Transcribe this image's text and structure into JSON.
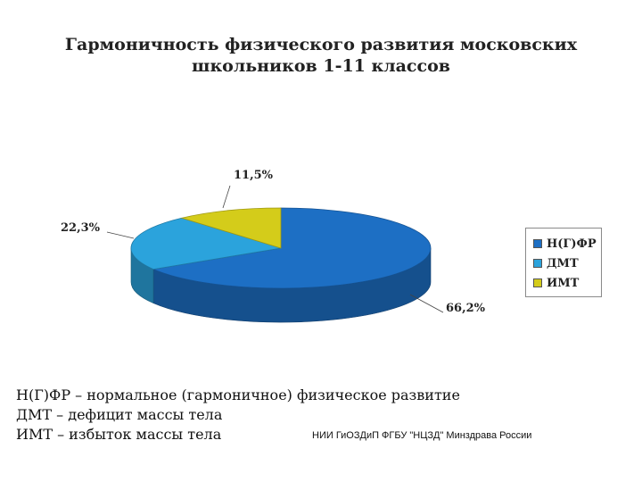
{
  "chart_data": {
    "type": "pie",
    "title_lines": [
      "Гармоничность физического развития московских",
      "школьников 1-11 классов"
    ],
    "slices": [
      {
        "name": "Н(Г)ФР",
        "value": 66.2,
        "label": "66,2%",
        "color": "#1d6fc4"
      },
      {
        "name": "ДМТ",
        "value": 22.3,
        "label": "22,3%",
        "color": "#2ba3dc"
      },
      {
        "name": "ИМТ",
        "value": 11.5,
        "label": "11,5%",
        "color": "#d4cc1a"
      }
    ],
    "legend_position": "right"
  },
  "notes": [
    "Н(Г)ФР – нормальное (гармоничное) физическое развитие",
    "ДМТ – дефицит массы тела",
    "ИМТ – избыток массы тела"
  ],
  "source": "НИИ ГиОЗДиП ФГБУ \"НЦЗД\" Минздрава России"
}
